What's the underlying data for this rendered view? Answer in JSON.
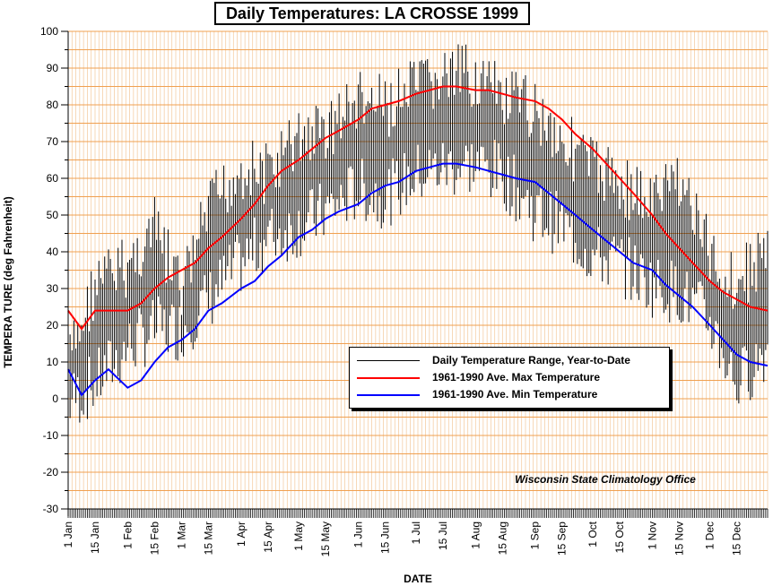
{
  "chart_data": {
    "type": "line",
    "title": "Daily Temperatures: LA CROSSE 1999",
    "xlabel": "DATE",
    "ylabel": "TEMPERA TURE (deg Fahrenheit)",
    "ylim": [
      -30,
      100
    ],
    "yticks": [
      -30,
      -20,
      -10,
      0,
      10,
      20,
      30,
      40,
      50,
      60,
      70,
      80,
      90,
      100
    ],
    "x_tick_labels": [
      {
        "label": "1 Jan",
        "day": 1
      },
      {
        "label": "15 Jan",
        "day": 15
      },
      {
        "label": "1 Feb",
        "day": 32
      },
      {
        "label": "15 Feb",
        "day": 46
      },
      {
        "label": "1 Mar",
        "day": 60
      },
      {
        "label": "15 Mar",
        "day": 74
      },
      {
        "label": "1 Apr",
        "day": 91
      },
      {
        "label": "15 Apr",
        "day": 105
      },
      {
        "label": "1 May",
        "day": 121
      },
      {
        "label": "15 May",
        "day": 135
      },
      {
        "label": "1 Jun",
        "day": 152
      },
      {
        "label": "15 Jun",
        "day": 166
      },
      {
        "label": "1 Jul",
        "day": 182
      },
      {
        "label": "15 Jul",
        "day": 196
      },
      {
        "label": "1 Aug",
        "day": 213
      },
      {
        "label": "15 Aug",
        "day": 227
      },
      {
        "label": "1 Sep",
        "day": 244
      },
      {
        "label": "15 Sep",
        "day": 258
      },
      {
        "label": "1 Oct",
        "day": 274
      },
      {
        "label": "15 Oct",
        "day": 288
      },
      {
        "label": "1 Nov",
        "day": 305
      },
      {
        "label": "15 Nov",
        "day": 319
      },
      {
        "label": "1 Dec",
        "day": 335
      },
      {
        "label": "15 Dec",
        "day": 349
      }
    ],
    "grid": true,
    "legend_position": "center-right",
    "series": [
      {
        "name": "Daily Temperature Range, Year-to-Date",
        "kind": "range",
        "color": "#000000",
        "days": [
          1,
          15,
          32,
          46,
          60,
          74,
          91,
          105,
          121,
          135,
          152,
          166,
          182,
          196,
          213,
          227,
          244,
          258,
          274,
          288,
          305,
          319,
          335,
          349,
          365
        ],
        "high": [
          18,
          40,
          45,
          55,
          38,
          60,
          72,
          70,
          80,
          82,
          90,
          88,
          93,
          96,
          97,
          90,
          88,
          80,
          72,
          68,
          62,
          70,
          48,
          40,
          50
        ],
        "low": [
          -10,
          -5,
          5,
          10,
          10,
          18,
          28,
          35,
          38,
          42,
          48,
          46,
          52,
          54,
          55,
          52,
          42,
          38,
          30,
          28,
          22,
          20,
          12,
          -5,
          5
        ]
      },
      {
        "name": "1961-1990 Ave. Max Temperature",
        "kind": "line",
        "color": "#ff0000",
        "days": [
          1,
          8,
          15,
          22,
          32,
          39,
          46,
          53,
          60,
          67,
          74,
          81,
          91,
          98,
          105,
          112,
          121,
          128,
          135,
          142,
          152,
          159,
          166,
          173,
          182,
          189,
          196,
          203,
          213,
          220,
          227,
          234,
          244,
          251,
          258,
          265,
          274,
          281,
          288,
          295,
          305,
          312,
          319,
          326,
          335,
          342,
          349,
          356,
          365
        ],
        "values": [
          24,
          19,
          24,
          24,
          24,
          26,
          30,
          33,
          35,
          37,
          41,
          44,
          49,
          53,
          58,
          62,
          65,
          68,
          71,
          73,
          76,
          79,
          80,
          81,
          83,
          84,
          85,
          85,
          84,
          84,
          83,
          82,
          81,
          79,
          76,
          72,
          68,
          64,
          60,
          56,
          50,
          45,
          41,
          37,
          32,
          29,
          27,
          25,
          24
        ]
      },
      {
        "name": "1961-1990 Ave. Min Temperature",
        "kind": "line",
        "color": "#0000ff",
        "days": [
          1,
          8,
          15,
          22,
          32,
          39,
          46,
          53,
          60,
          67,
          74,
          81,
          91,
          98,
          105,
          112,
          121,
          128,
          135,
          142,
          152,
          159,
          166,
          173,
          182,
          189,
          196,
          203,
          213,
          220,
          227,
          234,
          244,
          251,
          258,
          265,
          274,
          281,
          288,
          295,
          305,
          312,
          319,
          326,
          335,
          342,
          349,
          356,
          365
        ],
        "values": [
          8,
          1,
          5,
          8,
          3,
          5,
          10,
          14,
          16,
          19,
          24,
          26,
          30,
          32,
          36,
          39,
          44,
          46,
          49,
          51,
          53,
          56,
          58,
          59,
          62,
          63,
          64,
          64,
          63,
          62,
          61,
          60,
          59,
          56,
          53,
          50,
          46,
          43,
          40,
          37,
          35,
          31,
          28,
          25,
          20,
          16,
          12,
          10,
          9
        ]
      }
    ]
  },
  "credit": "Wisconsin State Climatology Office"
}
